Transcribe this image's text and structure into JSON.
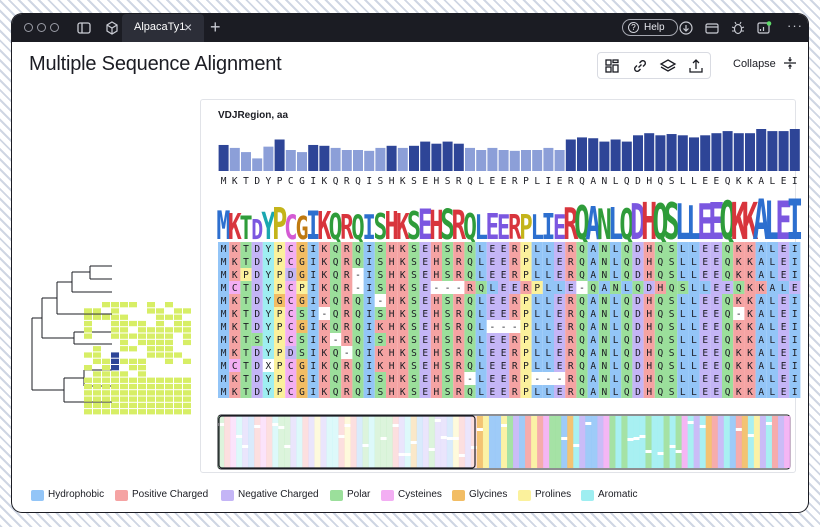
{
  "window": {
    "tab_label": "AlpacaTy1",
    "help_label": "Help"
  },
  "page": {
    "title": "Multiple Sequence Alignment",
    "collapse_label": "Collapse"
  },
  "msa": {
    "region_label": "VDJRegion, aa",
    "consensus": "MKTDYPCGIKQRQISHKSEHSRQLEERPLIERQANLQDHQSLLEEQKKALEI",
    "sequences": [
      "MKTDYPCGIKQRQISHKSEHSRQLEERPLLERQANLQDHQSLLEEQKKALEI",
      "MKTDYPCGIKQRQISHKSEHSRQLEERPLLERQANLQDHQSLLEEQKKALEI",
      "MKPDYPDGIKQR-ISHKSEHSRQLEERPLLERQANLQDHQSLLEEQKKALEI",
      "MCTDYPCPIKQR-ISHKSE---RQLEERPLLE-QANLQDHQSLLEEQKKALEI",
      "MKTDYGCGIKQRQI-HKSEHSRQLEERPLLERQANLQDHQSLLEEQKKALEI",
      "MKTDYPCSI-QRQISHKSEHSRQLEERPLLERQANLQDHQSLLEEQ-KALEI",
      "MKTDYPCGIKQRQIKHKSEHSRQL---PLLERQANLQDHQSLLEEQKKALEI",
      "MKTSYPCSIK-RQISHKSEHSRQLEERPLLERQANLQDHQSLLEEQKKALEI",
      "MKTDYPDSIKQ-QIKHKSEHSRQLEERPLLERQANLQDHQSLLEEQKKALEI",
      "MCTDXPCGIKQRQIKHKSEHSRQLEERPLLERQANLQDHQSLLEEQKKALEI",
      "MKTDYPCGIKQRQISHKSEHSR-LEERP---RQANLQDHQSLLEEQKKALEI",
      "MKTDYPCGIKQRQISHKSEHSRQLEERPLLERQANLQDHQSLLEEQKKALEI"
    ],
    "conservation": [
      0.62,
      0.55,
      0.45,
      0.3,
      0.58,
      0.75,
      0.5,
      0.45,
      0.62,
      0.6,
      0.55,
      0.5,
      0.5,
      0.48,
      0.55,
      0.6,
      0.55,
      0.6,
      0.7,
      0.65,
      0.7,
      0.65,
      0.55,
      0.5,
      0.55,
      0.5,
      0.48,
      0.5,
      0.5,
      0.55,
      0.5,
      0.75,
      0.8,
      0.78,
      0.7,
      0.75,
      0.7,
      0.85,
      0.9,
      0.85,
      0.88,
      0.85,
      0.8,
      0.85,
      0.9,
      0.95,
      0.9,
      0.9,
      1.0,
      0.95,
      0.95,
      1.0
    ]
  },
  "colors": {
    "hydrophobic": "#93c5f7",
    "positive_charged": "#f5a3a3",
    "negative_charged": "#c4b5f6",
    "polar": "#9bdf9b",
    "cysteines": "#f3aef3",
    "glycines": "#f2bd64",
    "prolines": "#fbf19c",
    "aromatic": "#9eeef1",
    "gap": "#ffffff",
    "bar_dark": "#2e4597",
    "bar_light": "#8c9fd8"
  },
  "legend": [
    {
      "label": "Hydrophobic",
      "color": "#93c5f7"
    },
    {
      "label": "Positive Charged",
      "color": "#f5a3a3"
    },
    {
      "label": "Negative Charged",
      "color": "#c4b5f6"
    },
    {
      "label": "Polar",
      "color": "#9bdf9b"
    },
    {
      "label": "Cysteines",
      "color": "#f3aef3"
    },
    {
      "label": "Glycines",
      "color": "#f2bd64"
    },
    {
      "label": "Prolines",
      "color": "#fbf19c"
    },
    {
      "label": "Aromatic",
      "color": "#9eeef1"
    }
  ],
  "icons": [
    "sidebar-toggle-icon",
    "cube-icon",
    "close-icon",
    "plus-icon",
    "help-circle-icon",
    "download-icon",
    "credit-card-icon",
    "bug-icon",
    "dashboard-icon",
    "more-icon",
    "layout-grid-icon",
    "link-icon",
    "layers-icon",
    "export-icon",
    "collapse-arrows-icon"
  ]
}
